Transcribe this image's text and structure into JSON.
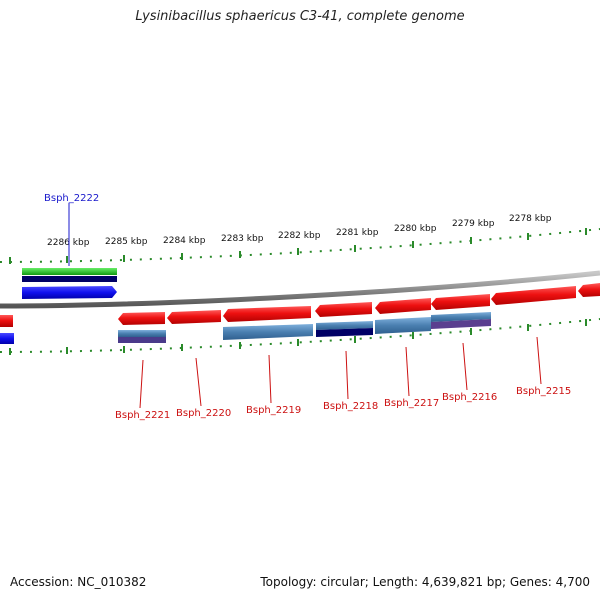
{
  "title": "Lysinibacillus sphaericus C3-41, complete genome",
  "footer": {
    "accession": "Accession: NC_010382",
    "summary": "Topology: circular; Length: 4,639,821 bp; Genes: 4,700"
  },
  "ruler_labels": [
    {
      "text": "2286 kbp",
      "kbp": 2286
    },
    {
      "text": "2285 kbp",
      "kbp": 2285
    },
    {
      "text": "2284 kbp",
      "kbp": 2284
    },
    {
      "text": "2283 kbp",
      "kbp": 2283
    },
    {
      "text": "2282 kbp",
      "kbp": 2282
    },
    {
      "text": "2281 kbp",
      "kbp": 2281
    },
    {
      "text": "2280 kbp",
      "kbp": 2280
    },
    {
      "text": "2279 kbp",
      "kbp": 2279
    },
    {
      "text": "2278 kbp",
      "kbp": 2278
    }
  ],
  "gene_labels": [
    {
      "text": "Bsph_2222",
      "color": "#1a1acc"
    },
    {
      "text": "Bsph_2221",
      "color": "#cc1111"
    },
    {
      "text": "Bsph_2220",
      "color": "#cc1111"
    },
    {
      "text": "Bsph_2219",
      "color": "#cc1111"
    },
    {
      "text": "Bsph_2218",
      "color": "#cc1111"
    },
    {
      "text": "Bsph_2217",
      "color": "#cc1111"
    },
    {
      "text": "Bsph_2216",
      "color": "#cc1111"
    },
    {
      "text": "Bsph_2215",
      "color": "#cc1111"
    }
  ],
  "colors": {
    "backbone": "#8a8a8a",
    "forward_cds": "#1010ee",
    "reverse_cds": "#ee1111",
    "ticks": "#2a8a2a",
    "feature_green": "#22bb22",
    "feature_navy": "#000066",
    "feature_steelblue": "#4a7fb0"
  }
}
